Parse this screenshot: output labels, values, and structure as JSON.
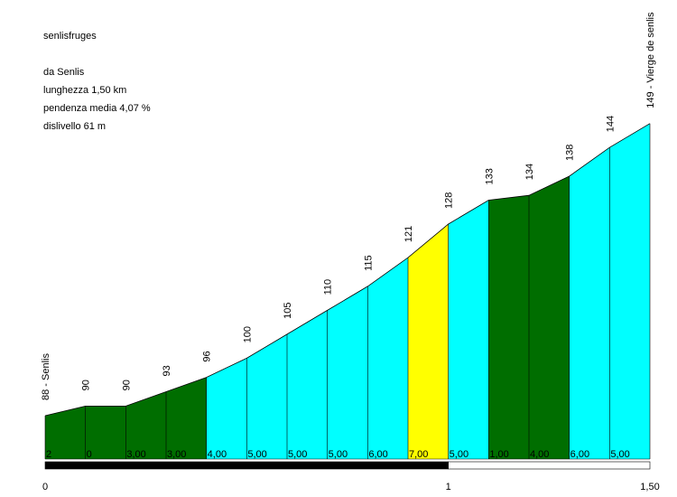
{
  "info": {
    "name": "senlisfruges",
    "start": "da Senlis",
    "length": "lunghezza 1,50 km",
    "gradient": "pendenza media 4,07 %",
    "climb": "dislivello 61 m"
  },
  "colors": {
    "green": "#006e00",
    "cyan": "#00ffff",
    "yellow": "#ffff00",
    "scale_black": "#000000"
  },
  "chart_data": {
    "type": "area",
    "title": "senlisfruges",
    "x_unit": "km",
    "y_unit": "m",
    "xlim": [
      0,
      1.5
    ],
    "x_ticks": [
      {
        "value": 0,
        "label": "0"
      },
      {
        "value": 1,
        "label": "1"
      },
      {
        "value": 1.5,
        "label": "1,50"
      }
    ],
    "start_label": "88 - Senlis",
    "end_label": "149 - Vierge de senlis",
    "points": [
      {
        "km": 0.0,
        "alt": 88,
        "label": "88 - Senlis"
      },
      {
        "km": 0.1,
        "alt": 90,
        "label": "90"
      },
      {
        "km": 0.2,
        "alt": 90,
        "label": "90"
      },
      {
        "km": 0.3,
        "alt": 93,
        "label": "93"
      },
      {
        "km": 0.4,
        "alt": 96,
        "label": "96"
      },
      {
        "km": 0.5,
        "alt": 100,
        "label": "100"
      },
      {
        "km": 0.6,
        "alt": 105,
        "label": "105"
      },
      {
        "km": 0.7,
        "alt": 110,
        "label": "110"
      },
      {
        "km": 0.8,
        "alt": 115,
        "label": "115"
      },
      {
        "km": 0.9,
        "alt": 121,
        "label": "121"
      },
      {
        "km": 1.0,
        "alt": 128,
        "label": "128"
      },
      {
        "km": 1.1,
        "alt": 133,
        "label": "133"
      },
      {
        "km": 1.2,
        "alt": 134,
        "label": "134"
      },
      {
        "km": 1.3,
        "alt": 138,
        "label": "138"
      },
      {
        "km": 1.4,
        "alt": 144,
        "label": "144"
      },
      {
        "km": 1.5,
        "alt": 149,
        "label": "149 - Vierge de senlis"
      }
    ],
    "segments": [
      {
        "grade": "2",
        "color": "green"
      },
      {
        "grade": "0",
        "color": "green"
      },
      {
        "grade": "3,00",
        "color": "green"
      },
      {
        "grade": "3,00",
        "color": "green"
      },
      {
        "grade": "4,00",
        "color": "cyan"
      },
      {
        "grade": "5,00",
        "color": "cyan"
      },
      {
        "grade": "5,00",
        "color": "cyan"
      },
      {
        "grade": "5,00",
        "color": "cyan"
      },
      {
        "grade": "6,00",
        "color": "cyan"
      },
      {
        "grade": "7,00",
        "color": "yellow"
      },
      {
        "grade": "5,00",
        "color": "cyan"
      },
      {
        "grade": "1,00",
        "color": "green"
      },
      {
        "grade": "4,00",
        "color": "green"
      },
      {
        "grade": "6,00",
        "color": "cyan"
      },
      {
        "grade": "5,00",
        "color": "cyan"
      }
    ]
  }
}
